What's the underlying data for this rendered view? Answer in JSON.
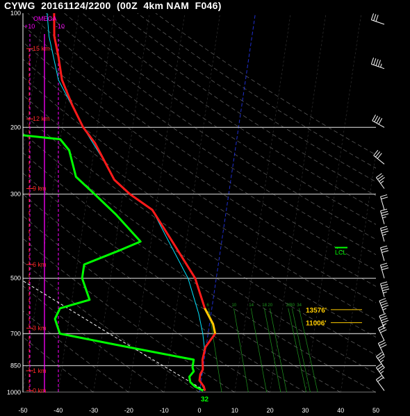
{
  "title": "CYWG  20161124/2200  (00Z  4km NAM  F046)",
  "colors": {
    "temperature": "#ff1a1a",
    "dewpoint": "#00ff00",
    "virtual_temperature": "#00e5ff",
    "isobar": "#b8b8b8",
    "isotherm_zero": "#1f2fd0",
    "dry_adiabat": "#666666",
    "mixing_ratio": "#1f9a1f",
    "parcel": "#ffffff",
    "omega": "#ff00ff",
    "height_marker": "#ff2a2a",
    "wind_barb": "#ffffff",
    "highlight": "#ffcc00"
  },
  "omega_panel": {
    "title": "OMEGA",
    "left_label": "+10",
    "right_label": "-10"
  },
  "chart_data": {
    "type": "line",
    "ylabel_scale": "log-pressure (hPa)",
    "x_ticks": [
      "-50",
      "-40",
      "-30",
      "-20",
      "-10",
      "0",
      "10",
      "20",
      "30",
      "40",
      "50"
    ],
    "xlim": [
      -50,
      50
    ],
    "p_ticks": [
      {
        "p": 100,
        "label": "100"
      },
      {
        "p": 200,
        "label": "200"
      },
      {
        "p": 300,
        "label": "300"
      },
      {
        "p": 500,
        "label": "500"
      },
      {
        "p": 700,
        "label": "700"
      },
      {
        "p": 850,
        "label": "850"
      },
      {
        "p": 1000,
        "label": "1000"
      }
    ],
    "isobars": [
      200,
      300,
      500,
      700,
      850,
      1000
    ],
    "ylim": [
      1000,
      100
    ],
    "grid": true,
    "height_markers": [
      {
        "label": "15 km",
        "p": 124
      },
      {
        "label": "12 km",
        "p": 190
      },
      {
        "label": "9 km",
        "p": 290
      },
      {
        "label": "6 km",
        "p": 460
      },
      {
        "label": "3 km",
        "p": 677
      },
      {
        "label": "1 km",
        "p": 877
      },
      {
        "label": "0 km",
        "p": 990
      }
    ],
    "mixing_ratio_labels": [
      "6",
      "10",
      "14",
      "18",
      "20",
      "28",
      "30",
      "34"
    ],
    "temperature": [
      {
        "p": 990,
        "t": 1.5
      },
      {
        "p": 965,
        "t": 1.0
      },
      {
        "p": 930,
        "t": -0.5
      },
      {
        "p": 895,
        "t": -0.5
      },
      {
        "p": 870,
        "t": 0.0
      },
      {
        "p": 820,
        "t": -0.5
      },
      {
        "p": 760,
        "t": -0.2
      },
      {
        "p": 700,
        "t": 2.0
      },
      {
        "p": 660,
        "t": 1.0
      },
      {
        "p": 600,
        "t": -2.0
      },
      {
        "p": 500,
        "t": -6.0
      },
      {
        "p": 400,
        "t": -14.0
      },
      {
        "p": 330,
        "t": -21.0
      },
      {
        "p": 300,
        "t": -28.0
      },
      {
        "p": 275,
        "t": -33.0
      },
      {
        "p": 250,
        "t": -36.0
      },
      {
        "p": 220,
        "t": -40.0
      },
      {
        "p": 200,
        "t": -44.0
      },
      {
        "p": 175,
        "t": -48.0
      },
      {
        "p": 150,
        "t": -52.0
      },
      {
        "p": 130,
        "t": -54.0
      },
      {
        "p": 115,
        "t": -56.0
      },
      {
        "p": 100,
        "t": -57.0
      }
    ],
    "dewpoint": [
      {
        "p": 990,
        "t": 1.0
      },
      {
        "p": 965,
        "t": -1.5
      },
      {
        "p": 940,
        "t": -3.0
      },
      {
        "p": 910,
        "t": -3.5
      },
      {
        "p": 880,
        "t": -2.5
      },
      {
        "p": 860,
        "t": -3.0
      },
      {
        "p": 820,
        "t": -3.0
      },
      {
        "p": 760,
        "t": -22.0
      },
      {
        "p": 700,
        "t": -42.0
      },
      {
        "p": 640,
        "t": -44.0
      },
      {
        "p": 600,
        "t": -43.0
      },
      {
        "p": 570,
        "t": -35.0
      },
      {
        "p": 500,
        "t": -38.0
      },
      {
        "p": 460,
        "t": -38.0
      },
      {
        "p": 420,
        "t": -28.0
      },
      {
        "p": 400,
        "t": -23.0
      },
      {
        "p": 340,
        "t": -31.0
      },
      {
        "p": 300,
        "t": -38.0
      },
      {
        "p": 270,
        "t": -44.0
      },
      {
        "p": 230,
        "t": -47.0
      },
      {
        "p": 215,
        "t": -50.0
      },
      {
        "p": 200,
        "t": -82.0
      },
      {
        "p": 185,
        "t": -90.0
      },
      {
        "p": 150,
        "t": -90.0
      }
    ],
    "virtual_temperature": [
      {
        "p": 990,
        "t": 1.5
      },
      {
        "p": 930,
        "t": -0.5
      },
      {
        "p": 870,
        "t": 0.0
      },
      {
        "p": 820,
        "t": -0.5
      },
      {
        "p": 760,
        "t": -0.5
      },
      {
        "p": 700,
        "t": -1.5
      },
      {
        "p": 620,
        "t": -3.5
      },
      {
        "p": 550,
        "t": -6.0
      },
      {
        "p": 500,
        "t": -8.0
      },
      {
        "p": 440,
        "t": -12.0
      },
      {
        "p": 400,
        "t": -15.0
      },
      {
        "p": 330,
        "t": -21.0
      },
      {
        "p": 300,
        "t": -28.0
      },
      {
        "p": 275,
        "t": -33.0
      },
      {
        "p": 250,
        "t": -36.0
      },
      {
        "p": 200,
        "t": -44.0
      },
      {
        "p": 150,
        "t": -53.0
      },
      {
        "p": 115,
        "t": -57.5
      },
      {
        "p": 100,
        "t": -59.0
      }
    ],
    "parcel": [
      {
        "p": 990,
        "t": 1.5
      },
      {
        "p": 700,
        "t": -28.0
      },
      {
        "p": 500,
        "t": -56.0
      },
      {
        "p": 400,
        "t": -75.0
      },
      {
        "p": 300,
        "t": -99.0
      },
      {
        "p": 200,
        "t": -130.0
      }
    ],
    "omega": [
      {
        "p": 1000,
        "v": 0
      },
      {
        "p": 100,
        "v": 0
      }
    ],
    "wind_barbs": [
      {
        "p": 107,
        "dir": 265,
        "spd": 30
      },
      {
        "p": 140,
        "dir": 265,
        "spd": 35
      },
      {
        "p": 200,
        "dir": 275,
        "spd": 40
      },
      {
        "p": 250,
        "dir": 285,
        "spd": 30
      },
      {
        "p": 290,
        "dir": 300,
        "spd": 25
      },
      {
        "p": 330,
        "dir": 320,
        "spd": 20
      },
      {
        "p": 360,
        "dir": 320,
        "spd": 25
      },
      {
        "p": 400,
        "dir": 320,
        "spd": 25
      },
      {
        "p": 450,
        "dir": 320,
        "spd": 30
      },
      {
        "p": 500,
        "dir": 320,
        "spd": 30
      },
      {
        "p": 560,
        "dir": 320,
        "spd": 35
      },
      {
        "p": 620,
        "dir": 315,
        "spd": 35
      },
      {
        "p": 680,
        "dir": 315,
        "spd": 35
      },
      {
        "p": 730,
        "dir": 310,
        "spd": 30
      },
      {
        "p": 800,
        "dir": 310,
        "spd": 30
      },
      {
        "p": 860,
        "dir": 300,
        "spd": 25
      },
      {
        "p": 920,
        "dir": 300,
        "spd": 25
      },
      {
        "p": 990,
        "dir": 300,
        "spd": 20
      }
    ],
    "lcl": {
      "label": "LCL",
      "p": 415
    },
    "levels": [
      {
        "label": "13576'",
        "p": 605
      },
      {
        "label": "11006'",
        "p": 655
      }
    ],
    "surface_label": "32"
  }
}
